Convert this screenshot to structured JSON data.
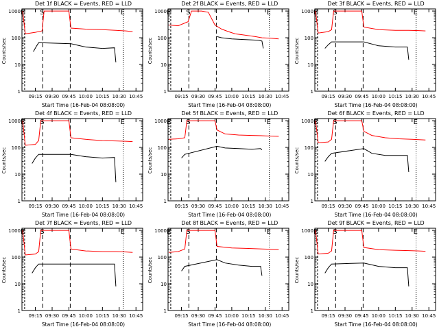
{
  "chart_data": [
    {
      "type": "line",
      "title": "Det 1f BLACK = Events, RED = LLD",
      "xlabel": "Start Time (16-Feb-04 08:08:00)",
      "ylabel": "Counts/sec",
      "x_tick_labels": [
        "09:15",
        "09:30",
        "09:45",
        "10:00",
        "10:15",
        "10:30",
        "10:45"
      ],
      "y_tick_labels": [
        "1",
        "10",
        "100",
        "1000"
      ],
      "ylim": [
        1,
        1200
      ],
      "yscale": "log",
      "markers": [
        "E",
        "S",
        "E"
      ],
      "series": [
        {
          "color": "#ff0000",
          "points": [
            [
              9.06,
              1000
            ],
            [
              9.1,
              140
            ],
            [
              9.25,
              160
            ],
            [
              9.35,
              180
            ],
            [
              9.38,
              1000
            ],
            [
              9.42,
              1000
            ],
            [
              9.45,
              1000
            ],
            [
              9.75,
              1000
            ],
            [
              9.78,
              230
            ],
            [
              10.0,
              210
            ],
            [
              10.25,
              200
            ],
            [
              10.45,
              190
            ],
            [
              10.6,
              180
            ],
            [
              10.7,
              170
            ]
          ]
        },
        {
          "color": "#000000",
          "points": [
            [
              9.22,
              30
            ],
            [
              9.27,
              50
            ],
            [
              9.3,
              65
            ],
            [
              9.78,
              60
            ],
            [
              10.0,
              45
            ],
            [
              10.25,
              40
            ],
            [
              10.43,
              42
            ],
            [
              10.45,
              12
            ]
          ]
        }
      ]
    },
    {
      "type": "line",
      "title": "Det 2f BLACK = Events, RED = LLD",
      "xlabel": "Start Time (16-Feb-04 08:08:00)",
      "ylabel": "Counts/sec",
      "x_tick_labels": [
        "09:15",
        "09:30",
        "09:45",
        "10:00",
        "10:15",
        "10:30",
        "10:45"
      ],
      "y_tick_labels": [
        "1",
        "10",
        "100",
        "1000"
      ],
      "ylim": [
        1,
        1200
      ],
      "yscale": "log",
      "markers": [
        "E",
        "S",
        "E"
      ],
      "series": [
        {
          "color": "#ff0000",
          "points": [
            [
              9.06,
              300
            ],
            [
              9.2,
              280
            ],
            [
              9.35,
              400
            ],
            [
              9.4,
              1000
            ],
            [
              9.45,
              1000
            ],
            [
              9.55,
              1000
            ],
            [
              9.65,
              900
            ],
            [
              9.75,
              300
            ],
            [
              9.85,
              210
            ],
            [
              9.95,
              170
            ],
            [
              10.05,
              140
            ],
            [
              10.15,
              130
            ],
            [
              10.25,
              120
            ],
            [
              10.35,
              110
            ],
            [
              10.45,
              100
            ],
            [
              10.6,
              95
            ],
            [
              10.7,
              90
            ]
          ]
        },
        {
          "color": "#000000",
          "points": [
            [
              9.78,
              110
            ],
            [
              9.85,
              100
            ],
            [
              10.0,
              90
            ],
            [
              10.2,
              85
            ],
            [
              10.4,
              80
            ],
            [
              10.45,
              75
            ],
            [
              10.47,
              40
            ]
          ]
        }
      ]
    },
    {
      "type": "line",
      "title": "Det 3f BLACK = Events, RED = LLD",
      "xlabel": "Start Time (16-Feb-04 08:08:00)",
      "ylabel": "Counts/sec",
      "x_tick_labels": [
        "09:15",
        "09:30",
        "09:45",
        "10:00",
        "10:15",
        "10:30",
        "10:45"
      ],
      "y_tick_labels": [
        "1",
        "10",
        "100",
        "1000"
      ],
      "ylim": [
        1,
        1200
      ],
      "yscale": "log",
      "markers": [
        "E",
        "S",
        "E"
      ],
      "series": [
        {
          "color": "#ff0000",
          "points": [
            [
              9.06,
              1000
            ],
            [
              9.1,
              150
            ],
            [
              9.25,
              170
            ],
            [
              9.3,
              200
            ],
            [
              9.33,
              1000
            ],
            [
              9.4,
              1000
            ],
            [
              9.75,
              1000
            ],
            [
              9.78,
              250
            ],
            [
              10.0,
              200
            ],
            [
              10.25,
              190
            ],
            [
              10.45,
              190
            ],
            [
              10.6,
              185
            ],
            [
              10.7,
              180
            ]
          ]
        },
        {
          "color": "#000000",
          "points": [
            [
              9.2,
              40
            ],
            [
              9.25,
              55
            ],
            [
              9.3,
              70
            ],
            [
              9.78,
              70
            ],
            [
              10.0,
              50
            ],
            [
              10.25,
              45
            ],
            [
              10.43,
              45
            ],
            [
              10.45,
              15
            ]
          ]
        }
      ]
    },
    {
      "type": "line",
      "title": "Det 4f BLACK = Events, RED = LLD",
      "xlabel": "Start Time (16-Feb-04 08:08:00)",
      "ylabel": "Counts/sec",
      "x_tick_labels": [
        "09:15",
        "09:30",
        "09:45",
        "10:00",
        "10:15",
        "10:30",
        "10:45"
      ],
      "y_tick_labels": [
        "1",
        "10",
        "100",
        "1000"
      ],
      "ylim": [
        1,
        1200
      ],
      "yscale": "log",
      "markers": [
        "E",
        "S",
        "E"
      ],
      "series": [
        {
          "color": "#ff0000",
          "points": [
            [
              9.06,
              1000
            ],
            [
              9.1,
              120
            ],
            [
              9.25,
              130
            ],
            [
              9.3,
              180
            ],
            [
              9.33,
              1000
            ],
            [
              9.4,
              1000
            ],
            [
              9.75,
              1000
            ],
            [
              9.78,
              230
            ],
            [
              10.0,
              200
            ],
            [
              10.25,
              180
            ],
            [
              10.45,
              175
            ],
            [
              10.6,
              170
            ],
            [
              10.7,
              165
            ]
          ]
        },
        {
          "color": "#000000",
          "points": [
            [
              9.2,
              25
            ],
            [
              9.25,
              40
            ],
            [
              9.3,
              55
            ],
            [
              9.78,
              55
            ],
            [
              10.0,
              45
            ],
            [
              10.25,
              40
            ],
            [
              10.43,
              42
            ],
            [
              10.45,
              5
            ]
          ]
        }
      ]
    },
    {
      "type": "line",
      "title": "Det 5f BLACK = Events, RED = LLD",
      "xlabel": "Start Time (16-Feb-04 08:08:00)",
      "ylabel": "Counts/sec",
      "x_tick_labels": [
        "09:15",
        "09:30",
        "09:45",
        "10:00",
        "10:15",
        "10:30",
        "10:45"
      ],
      "y_tick_labels": [
        "1",
        "10",
        "100",
        "1000"
      ],
      "ylim": [
        1,
        1200
      ],
      "yscale": "log",
      "markers": [
        "E",
        "S",
        "E"
      ],
      "series": [
        {
          "color": "#ff0000",
          "points": [
            [
              9.06,
              200
            ],
            [
              9.2,
              210
            ],
            [
              9.3,
              230
            ],
            [
              9.33,
              1000
            ],
            [
              9.4,
              1000
            ],
            [
              9.75,
              1000
            ],
            [
              9.78,
              450
            ],
            [
              9.9,
              320
            ],
            [
              10.1,
              290
            ],
            [
              10.3,
              280
            ],
            [
              10.5,
              270
            ],
            [
              10.7,
              260
            ]
          ]
        },
        {
          "color": "#000000",
          "points": [
            [
              9.25,
              40
            ],
            [
              9.3,
              55
            ],
            [
              9.78,
              110
            ],
            [
              9.9,
              95
            ],
            [
              10.1,
              90
            ],
            [
              10.3,
              85
            ],
            [
              10.43,
              90
            ],
            [
              10.45,
              80
            ]
          ]
        }
      ]
    },
    {
      "type": "line",
      "title": "Det 6f BLACK = Events, RED = LLD",
      "xlabel": "Start Time (16-Feb-04 08:08:00)",
      "ylabel": "Counts/sec",
      "x_tick_labels": [
        "09:15",
        "09:30",
        "09:45",
        "10:00",
        "10:15",
        "10:30",
        "10:45"
      ],
      "y_tick_labels": [
        "1",
        "10",
        "100",
        "1000"
      ],
      "ylim": [
        1,
        1200
      ],
      "yscale": "log",
      "markers": [
        "E",
        "S",
        "E"
      ],
      "series": [
        {
          "color": "#ff0000",
          "points": [
            [
              9.06,
              1000
            ],
            [
              9.1,
              150
            ],
            [
              9.25,
              160
            ],
            [
              9.3,
              200
            ],
            [
              9.33,
              1000
            ],
            [
              9.4,
              1000
            ],
            [
              9.75,
              1000
            ],
            [
              9.78,
              400
            ],
            [
              9.9,
              280
            ],
            [
              10.1,
              230
            ],
            [
              10.3,
              210
            ],
            [
              10.5,
              200
            ],
            [
              10.7,
              190
            ]
          ]
        },
        {
          "color": "#000000",
          "points": [
            [
              9.2,
              30
            ],
            [
              9.25,
              45
            ],
            [
              9.3,
              60
            ],
            [
              9.78,
              90
            ],
            [
              9.9,
              60
            ],
            [
              10.1,
              50
            ],
            [
              10.3,
              50
            ],
            [
              10.43,
              50
            ],
            [
              10.45,
              12
            ]
          ]
        }
      ]
    },
    {
      "type": "line",
      "title": "Det 7f BLACK = Events, RED = LLD",
      "xlabel": "Start Time (16-Feb-04 08:08:00)",
      "ylabel": "Counts/sec",
      "x_tick_labels": [
        "09:15",
        "09:30",
        "09:45",
        "10:00",
        "10:15",
        "10:30",
        "10:45"
      ],
      "y_tick_labels": [
        "1",
        "10",
        "100",
        "1000"
      ],
      "ylim": [
        1,
        1200
      ],
      "yscale": "log",
      "markers": [
        "E",
        "S",
        "E"
      ],
      "series": [
        {
          "color": "#ff0000",
          "points": [
            [
              9.06,
              1000
            ],
            [
              9.1,
              120
            ],
            [
              9.25,
              130
            ],
            [
              9.3,
              160
            ],
            [
              9.33,
              1000
            ],
            [
              9.4,
              1000
            ],
            [
              9.75,
              1000
            ],
            [
              9.78,
              200
            ],
            [
              10.0,
              170
            ],
            [
              10.25,
              160
            ],
            [
              10.45,
              160
            ],
            [
              10.6,
              155
            ],
            [
              10.7,
              150
            ]
          ]
        },
        {
          "color": "#000000",
          "points": [
            [
              9.2,
              25
            ],
            [
              9.25,
              40
            ],
            [
              9.3,
              55
            ],
            [
              9.78,
              55
            ],
            [
              10.0,
              55
            ],
            [
              10.25,
              55
            ],
            [
              10.43,
              55
            ],
            [
              10.45,
              8
            ]
          ]
        }
      ]
    },
    {
      "type": "line",
      "title": "Det 8f BLACK = Events, RED = LLD",
      "xlabel": "Start Time (16-Feb-04 08:08:00)",
      "ylabel": "Counts/sec",
      "x_tick_labels": [
        "09:15",
        "09:30",
        "09:45",
        "10:00",
        "10:15",
        "10:30",
        "10:45"
      ],
      "y_tick_labels": [
        "1",
        "10",
        "100",
        "1000"
      ],
      "ylim": [
        1,
        1200
      ],
      "yscale": "log",
      "markers": [
        "E",
        "S",
        "E"
      ],
      "series": [
        {
          "color": "#ff0000",
          "points": [
            [
              9.06,
              150
            ],
            [
              9.2,
              160
            ],
            [
              9.3,
              200
            ],
            [
              9.33,
              1000
            ],
            [
              9.4,
              1000
            ],
            [
              9.75,
              1000
            ],
            [
              9.78,
              250
            ],
            [
              10.0,
              220
            ],
            [
              10.25,
              210
            ],
            [
              10.45,
              200
            ],
            [
              10.6,
              195
            ],
            [
              10.7,
              190
            ]
          ]
        },
        {
          "color": "#000000",
          "points": [
            [
              9.25,
              30
            ],
            [
              9.3,
              45
            ],
            [
              9.78,
              80
            ],
            [
              9.9,
              60
            ],
            [
              10.1,
              50
            ],
            [
              10.3,
              45
            ],
            [
              10.43,
              45
            ],
            [
              10.45,
              20
            ]
          ]
        }
      ]
    },
    {
      "type": "line",
      "title": "Det 9f BLACK = Events, RED = LLD",
      "xlabel": "Start Time (16-Feb-04 08:08:00)",
      "ylabel": "Counts/sec",
      "x_tick_labels": [
        "09:15",
        "09:30",
        "09:45",
        "10:00",
        "10:15",
        "10:30",
        "10:45"
      ],
      "y_tick_labels": [
        "1",
        "10",
        "100",
        "1000"
      ],
      "ylim": [
        1,
        1200
      ],
      "yscale": "log",
      "markers": [
        "E",
        "S",
        "E"
      ],
      "series": [
        {
          "color": "#ff0000",
          "points": [
            [
              9.06,
              1000
            ],
            [
              9.1,
              130
            ],
            [
              9.25,
              140
            ],
            [
              9.3,
              170
            ],
            [
              9.33,
              1000
            ],
            [
              9.4,
              1000
            ],
            [
              9.75,
              1000
            ],
            [
              9.78,
              230
            ],
            [
              10.0,
              190
            ],
            [
              10.25,
              180
            ],
            [
              10.45,
              175
            ],
            [
              10.6,
              170
            ],
            [
              10.7,
              165
            ]
          ]
        },
        {
          "color": "#000000",
          "points": [
            [
              9.2,
              25
            ],
            [
              9.25,
              40
            ],
            [
              9.3,
              55
            ],
            [
              9.78,
              60
            ],
            [
              10.0,
              45
            ],
            [
              10.25,
              40
            ],
            [
              10.43,
              40
            ],
            [
              10.45,
              8
            ]
          ]
        }
      ]
    }
  ]
}
